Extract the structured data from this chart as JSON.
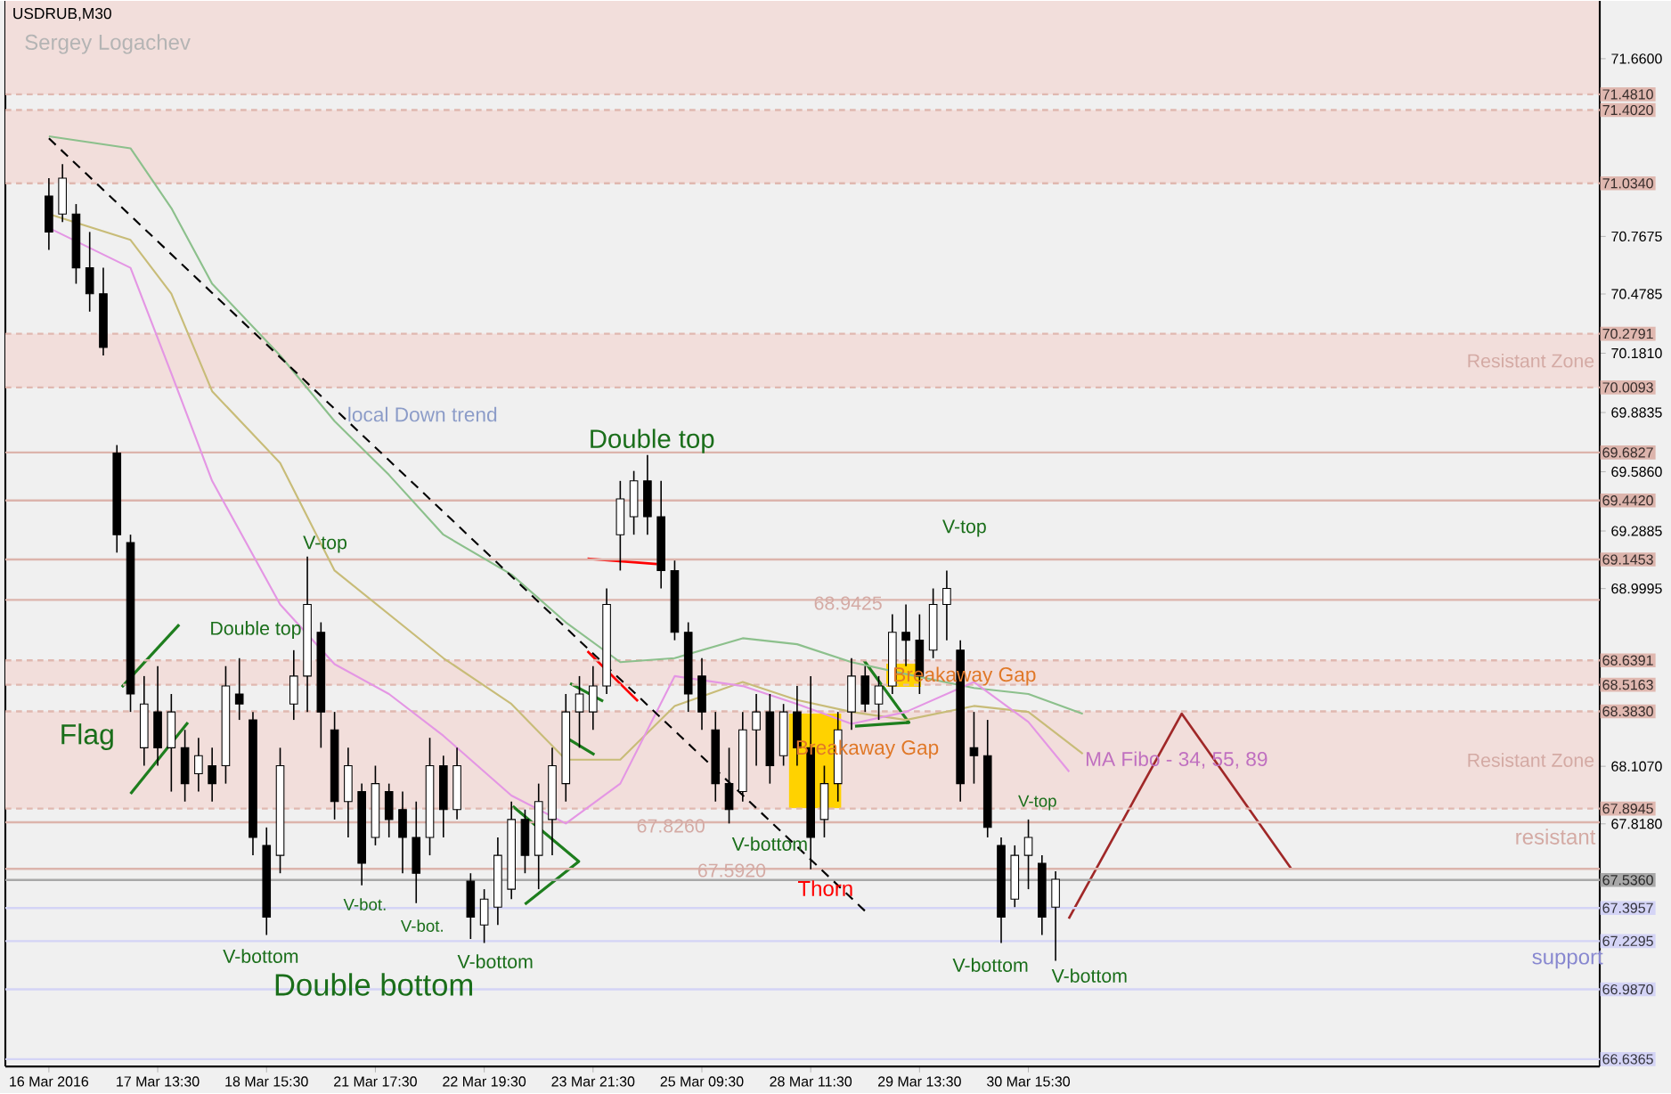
{
  "chart_data": {
    "type": "candlestick",
    "title": "USDRUB,M30",
    "subtitle": "Sergey Logachev",
    "ylim": [
      66.6,
      71.95
    ],
    "yticks": [
      {
        "value": 71.66,
        "label": "71.6600"
      },
      {
        "value": 70.7675,
        "label": "70.7675"
      },
      {
        "value": 70.4785,
        "label": "70.4785"
      },
      {
        "value": 70.181,
        "label": "70.1810"
      },
      {
        "value": 69.8835,
        "label": "69.8835"
      },
      {
        "value": 69.586,
        "label": "69.5860"
      },
      {
        "value": 69.2885,
        "label": "69.2885"
      },
      {
        "value": 68.9995,
        "label": "68.9995"
      },
      {
        "value": 68.107,
        "label": "68.1070"
      },
      {
        "value": 67.818,
        "label": "67.8180"
      }
    ],
    "categories": [
      "16 Mar 2016",
      null,
      null,
      null,
      null,
      null,
      null,
      null,
      "17 Mar 13:30",
      null,
      null,
      null,
      null,
      null,
      null,
      null,
      "18 Mar 15:30",
      null,
      null,
      null,
      null,
      null,
      null,
      null,
      "21 Mar 17:30",
      null,
      null,
      null,
      null,
      null,
      null,
      null,
      "22 Mar 19:30",
      null,
      null,
      null,
      null,
      null,
      null,
      null,
      "23 Mar 21:30",
      null,
      null,
      null,
      null,
      null,
      null,
      null,
      "25 Mar 09:30",
      null,
      null,
      null,
      null,
      null,
      null,
      null,
      "28 Mar 11:30",
      null,
      null,
      null,
      null,
      null,
      null,
      null,
      "29 Mar 13:30",
      null,
      null,
      null,
      null,
      null,
      null,
      null,
      "30 Mar 15:30",
      null,
      null,
      null,
      null,
      null,
      null,
      null,
      null,
      null,
      null,
      null,
      null,
      null,
      null,
      null,
      null,
      null,
      null,
      null,
      null,
      null,
      null,
      null,
      null,
      null,
      null,
      null,
      null,
      null,
      null,
      null,
      null,
      null,
      null,
      null,
      null,
      null,
      null,
      null,
      null,
      null,
      null
    ],
    "ohlc": [
      [
        70.97,
        71.06,
        70.7,
        70.79
      ],
      [
        70.88,
        71.13,
        70.84,
        71.06
      ],
      [
        70.88,
        70.93,
        70.53,
        70.61
      ],
      [
        70.61,
        70.79,
        70.39,
        70.48
      ],
      [
        70.48,
        70.61,
        70.17,
        70.21
      ],
      [
        69.68,
        69.72,
        69.18,
        69.27
      ],
      [
        69.23,
        69.27,
        68.38,
        68.47
      ],
      [
        68.2,
        68.56,
        68.11,
        68.42
      ],
      [
        68.38,
        68.61,
        68.11,
        68.2
      ],
      [
        68.2,
        68.47,
        67.98,
        68.38
      ],
      [
        68.2,
        68.29,
        67.93,
        68.02
      ],
      [
        68.07,
        68.25,
        67.98,
        68.16
      ],
      [
        68.11,
        68.2,
        67.93,
        68.02
      ],
      [
        68.11,
        68.61,
        68.02,
        68.51
      ],
      [
        68.47,
        68.65,
        68.34,
        68.42
      ],
      [
        68.34,
        68.38,
        67.66,
        67.75
      ],
      [
        67.71,
        67.8,
        67.26,
        67.35
      ],
      [
        67.66,
        68.2,
        67.57,
        68.11
      ],
      [
        68.42,
        68.69,
        68.34,
        68.56
      ],
      [
        68.56,
        69.16,
        68.38,
        68.92
      ],
      [
        68.78,
        68.83,
        68.2,
        68.38
      ],
      [
        68.29,
        68.38,
        67.84,
        67.93
      ],
      [
        67.93,
        68.2,
        67.75,
        68.11
      ],
      [
        67.98,
        68.02,
        67.51,
        67.62
      ],
      [
        67.75,
        68.11,
        67.71,
        68.02
      ],
      [
        67.98,
        68.02,
        67.75,
        67.84
      ],
      [
        67.89,
        67.98,
        67.57,
        67.75
      ],
      [
        67.75,
        67.93,
        67.42,
        67.57
      ],
      [
        67.75,
        68.25,
        67.66,
        68.11
      ],
      [
        68.11,
        68.16,
        67.75,
        67.89
      ],
      [
        67.89,
        68.2,
        67.84,
        68.11
      ],
      [
        67.53,
        67.57,
        67.24,
        67.35
      ],
      [
        67.31,
        67.49,
        67.22,
        67.44
      ],
      [
        67.4,
        67.75,
        67.31,
        67.66
      ],
      [
        67.49,
        67.93,
        67.44,
        67.84
      ],
      [
        67.84,
        67.89,
        67.57,
        67.66
      ],
      [
        67.66,
        68.02,
        67.49,
        67.93
      ],
      [
        67.84,
        68.2,
        67.66,
        68.11
      ],
      [
        68.02,
        68.47,
        67.93,
        68.38
      ],
      [
        68.38,
        68.56,
        68.2,
        68.47
      ],
      [
        68.38,
        68.61,
        68.29,
        68.51
      ],
      [
        68.51,
        69.0,
        68.47,
        68.92
      ],
      [
        69.27,
        69.54,
        69.09,
        69.45
      ],
      [
        69.36,
        69.59,
        69.27,
        69.54
      ],
      [
        69.54,
        69.67,
        69.27,
        69.36
      ],
      [
        69.36,
        69.54,
        69.0,
        69.09
      ],
      [
        69.09,
        69.14,
        68.74,
        68.78
      ],
      [
        68.78,
        68.83,
        68.38,
        68.47
      ],
      [
        68.56,
        68.65,
        68.29,
        68.38
      ],
      [
        68.29,
        68.38,
        67.93,
        68.02
      ],
      [
        68.02,
        68.2,
        67.82,
        67.89
      ],
      [
        67.98,
        68.38,
        67.93,
        68.29
      ],
      [
        68.29,
        68.47,
        68.11,
        68.38
      ],
      [
        68.38,
        68.47,
        68.02,
        68.11
      ],
      [
        68.16,
        68.42,
        68.11,
        68.38
      ],
      [
        68.38,
        68.51,
        68.11,
        68.2
      ],
      [
        68.2,
        68.56,
        67.59,
        67.75
      ],
      [
        67.84,
        68.11,
        67.75,
        68.02
      ],
      [
        68.02,
        68.38,
        67.93,
        68.29
      ],
      [
        68.38,
        68.65,
        68.29,
        68.56
      ],
      [
        68.56,
        68.61,
        68.38,
        68.42
      ],
      [
        68.42,
        68.56,
        68.34,
        68.51
      ],
      [
        68.51,
        68.87,
        68.47,
        68.78
      ],
      [
        68.78,
        68.92,
        68.61,
        68.74
      ],
      [
        68.74,
        68.87,
        68.47,
        68.56
      ],
      [
        68.69,
        69.0,
        68.65,
        68.92
      ],
      [
        68.92,
        69.09,
        68.74,
        69.0
      ],
      [
        68.69,
        68.74,
        67.93,
        68.02
      ],
      [
        68.2,
        68.38,
        68.02,
        68.16
      ],
      [
        68.16,
        68.34,
        67.75,
        67.8
      ],
      [
        67.71,
        67.75,
        67.22,
        67.35
      ],
      [
        67.44,
        67.71,
        67.4,
        67.66
      ],
      [
        67.66,
        67.84,
        67.49,
        67.75
      ],
      [
        67.62,
        67.66,
        67.26,
        67.35
      ],
      [
        67.4,
        67.58,
        67.13,
        67.54
      ],
      null,
      null,
      null,
      null,
      null,
      null,
      null,
      null,
      null,
      null,
      null,
      null,
      null,
      null,
      null,
      null,
      null,
      null,
      null,
      null,
      null,
      null,
      null,
      null,
      null,
      null,
      null,
      null,
      null,
      null,
      null,
      null,
      null,
      null,
      null,
      null,
      null,
      null,
      null,
      null
    ],
    "series": [
      {
        "type": "line",
        "color": "#8cc08c",
        "values": [
          71.27,
          null,
          null,
          null,
          null,
          null,
          71.21,
          null,
          null,
          70.91,
          null,
          null,
          70.53,
          null,
          null,
          null,
          null,
          70.17,
          null,
          null,
          null,
          69.84,
          null,
          null,
          null,
          69.57,
          null,
          null,
          null,
          69.27,
          null,
          null,
          null,
          null,
          69.07,
          null,
          null,
          null,
          68.83,
          null,
          null,
          null,
          68.63,
          null,
          null,
          null,
          68.65,
          null,
          null,
          null,
          null,
          68.75,
          null,
          null,
          null,
          68.72,
          null,
          null,
          null,
          68.63,
          null,
          null,
          null,
          68.57,
          null,
          null,
          null,
          null,
          68.5,
          null,
          null,
          null,
          68.47,
          null,
          null,
          null,
          68.37,
          null,
          null,
          null,
          null,
          null,
          null,
          null,
          null,
          null,
          null,
          null,
          null,
          null,
          null,
          null,
          null,
          null,
          null,
          null,
          null,
          null,
          null,
          null,
          null,
          null,
          null,
          null,
          null,
          null,
          null,
          null,
          null,
          null,
          null,
          null,
          null,
          null,
          null
        ]
      },
      {
        "type": "line",
        "color": "#c8bc78",
        "values": [
          70.88,
          null,
          null,
          null,
          null,
          null,
          70.75,
          null,
          null,
          70.48,
          null,
          null,
          69.99,
          null,
          null,
          null,
          null,
          69.63,
          null,
          null,
          null,
          69.09,
          null,
          null,
          null,
          68.87,
          null,
          null,
          null,
          68.65,
          null,
          null,
          null,
          null,
          68.42,
          null,
          null,
          null,
          68.14,
          null,
          null,
          null,
          68.14,
          null,
          null,
          null,
          68.41,
          null,
          null,
          null,
          null,
          68.53,
          null,
          null,
          null,
          68.44,
          null,
          null,
          null,
          68.38,
          null,
          null,
          null,
          68.34,
          null,
          null,
          null,
          null,
          68.41,
          null,
          null,
          null,
          68.38,
          null,
          null,
          null,
          68.17,
          null,
          null,
          null,
          null,
          null,
          null,
          null,
          null,
          null,
          null,
          null,
          null,
          null,
          null,
          null,
          null,
          null,
          null,
          null,
          null,
          null,
          null,
          null,
          null,
          null,
          null,
          null,
          null,
          null,
          null,
          null,
          null,
          null,
          null,
          null,
          null,
          null,
          null
        ]
      },
      {
        "type": "line",
        "color": "#e496e4",
        "values": [
          70.81,
          null,
          null,
          null,
          null,
          null,
          70.61,
          null,
          null,
          70.08,
          null,
          null,
          69.54,
          null,
          null,
          null,
          null,
          68.92,
          null,
          null,
          null,
          68.62,
          null,
          null,
          null,
          68.47,
          null,
          null,
          null,
          68.26,
          null,
          null,
          null,
          null,
          67.96,
          null,
          null,
          null,
          67.82,
          null,
          null,
          null,
          68.02,
          null,
          null,
          null,
          68.56,
          null,
          null,
          null,
          null,
          68.51,
          null,
          null,
          null,
          68.42,
          null,
          null,
          null,
          68.32,
          null,
          null,
          null,
          68.38,
          null,
          null,
          null,
          null,
          68.53,
          null,
          null,
          null,
          68.33,
          null,
          null,
          68.08,
          null,
          null,
          null,
          null,
          null,
          null,
          null,
          null,
          null,
          null,
          null,
          null,
          null,
          null,
          null,
          null,
          null,
          null,
          null,
          null,
          null,
          null,
          null,
          null,
          null,
          null,
          null,
          null,
          null,
          null,
          null,
          null,
          null,
          null,
          null,
          null,
          null,
          null,
          null
        ]
      },
      {
        "type": "line",
        "color": "#000000",
        "line_style": "dashed",
        "values": [
          71.26,
          null,
          null,
          null,
          null,
          null,
          null,
          null,
          null,
          null,
          null,
          null,
          null,
          null,
          null,
          null,
          null,
          null,
          null,
          null,
          null,
          null,
          null,
          null,
          null,
          null,
          null,
          null,
          null,
          null,
          null,
          null,
          null,
          null,
          null,
          null,
          null,
          null,
          null,
          null,
          null,
          null,
          null,
          null,
          null,
          null,
          null,
          null,
          null,
          null,
          null,
          null,
          null,
          null,
          null,
          null,
          null,
          null,
          null,
          null,
          67.38,
          null,
          null,
          null,
          null,
          null,
          null,
          null,
          null,
          null,
          null,
          null,
          null,
          null,
          null,
          null,
          null,
          null,
          null,
          null,
          null,
          null,
          null,
          null,
          null,
          null,
          null,
          null,
          null,
          null,
          null,
          null,
          null,
          null,
          null,
          null,
          null,
          null,
          null,
          null,
          null,
          null,
          null,
          null,
          null,
          null,
          null,
          null,
          null,
          null,
          null,
          null,
          null,
          null,
          null
        ]
      }
    ],
    "bands": [
      {
        "axis": "y",
        "from": 71.481,
        "to": 71.95,
        "color": "#f2dedb"
      },
      {
        "axis": "y",
        "from": 71.034,
        "to": 71.402,
        "color": "#f2dedb"
      },
      {
        "axis": "y",
        "from": 70.0093,
        "to": 70.2791,
        "color": "#f2dedb",
        "label": "Resistant Zone"
      },
      {
        "axis": "y",
        "from": 68.5163,
        "to": 68.6391,
        "color": "#f2dedb"
      },
      {
        "axis": "y",
        "from": 67.8945,
        "to": 68.383,
        "color": "#f2dedb",
        "label": "Resistant Zone"
      }
    ],
    "ref_lines": [
      {
        "axis": "y",
        "value": 71.481,
        "label": "71.4810",
        "color": "#e0b8b0",
        "line_style": "dashed"
      },
      {
        "axis": "y",
        "value": 71.402,
        "label": "71.4020",
        "color": "#e0b8b0",
        "line_style": "dashed"
      },
      {
        "axis": "y",
        "value": 71.034,
        "label": "71.0340",
        "color": "#e0b8b0",
        "line_style": "dashed"
      },
      {
        "axis": "y",
        "value": 70.2791,
        "label": "70.2791",
        "color": "#e0b8b0",
        "line_style": "dashed"
      },
      {
        "axis": "y",
        "value": 70.0093,
        "label": "70.0093",
        "color": "#e0b8b0",
        "line_style": "dashed"
      },
      {
        "axis": "y",
        "value": 69.6827,
        "label": "69.6827",
        "color": "#dcb4ac",
        "line_style": "solid"
      },
      {
        "axis": "y",
        "value": 69.442,
        "label": "69.4420",
        "color": "#dcb4ac",
        "line_style": "solid"
      },
      {
        "axis": "y",
        "value": 69.1453,
        "label": "69.1453",
        "color": "#dcb4ac",
        "line_style": "solid"
      },
      {
        "axis": "y",
        "value": 68.9425,
        "color": "#dcb4ac",
        "line_style": "solid"
      },
      {
        "axis": "y",
        "value": 68.6391,
        "label": "68.6391",
        "color": "#e0b8b0",
        "line_style": "dashed"
      },
      {
        "axis": "y",
        "value": 68.5163,
        "label": "68.5163",
        "color": "#e0b8b0",
        "line_style": "dashed"
      },
      {
        "axis": "y",
        "value": 68.383,
        "label": "68.3830",
        "color": "#e0b8b0",
        "line_style": "dashed"
      },
      {
        "axis": "y",
        "value": 67.8945,
        "label": "67.8945",
        "color": "#e0b8b0",
        "line_style": "dashed"
      },
      {
        "axis": "y",
        "value": 67.826,
        "color": "#dcb4ac",
        "line_style": "solid"
      },
      {
        "axis": "y",
        "value": 67.592,
        "color": "#dcb4ac",
        "line_style": "solid"
      },
      {
        "axis": "y",
        "value": 67.536,
        "label": "67.5360",
        "color": "#a8a8a8",
        "line_style": "solid"
      },
      {
        "axis": "y",
        "value": 67.3957,
        "label": "67.3957",
        "color": "#d4d4f6",
        "line_style": "solid"
      },
      {
        "axis": "y",
        "value": 67.2295,
        "label": "67.2295",
        "color": "#d4d4f6",
        "line_style": "solid"
      },
      {
        "axis": "y",
        "value": 66.987,
        "label": "66.9870",
        "color": "#d4d4f6",
        "line_style": "solid"
      },
      {
        "axis": "y",
        "value": 66.6365,
        "label": "66.6365",
        "color": "#d4d4f6",
        "line_style": "solid"
      }
    ],
    "annotations": [
      "Flag",
      "Double top",
      "V-top",
      "V-bottom",
      "V-bot.",
      "V-bot.",
      "V-bottom",
      "Double bottom",
      "local Down trend",
      "Double top",
      "67.8260",
      "V-bottom",
      "67.5920",
      "Thorn",
      "Breakaway Gap",
      "68.9425",
      "Breakaway Gap",
      "V-top",
      "V-top",
      "V-bottom",
      "V-bottom",
      "MA Fibo - 34, 55, 89",
      "resistant",
      "support"
    ]
  }
}
